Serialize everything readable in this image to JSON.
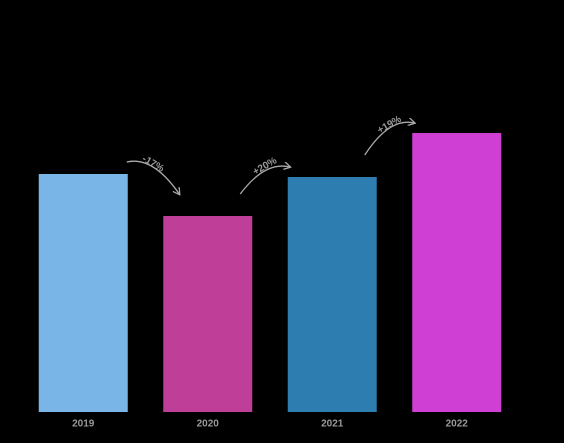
{
  "chart_data": {
    "type": "bar",
    "categories": [
      "2019",
      "2020",
      "2021",
      "2022"
    ],
    "values": [
      238,
      196,
      235,
      279
    ],
    "colors": [
      "#7ab5e8",
      "#bf3f98",
      "#2e7db0",
      "#cf3fd4"
    ],
    "ylim": [
      0,
      300
    ],
    "annotations": [
      "-17%",
      "+20%",
      "+19%"
    ]
  }
}
